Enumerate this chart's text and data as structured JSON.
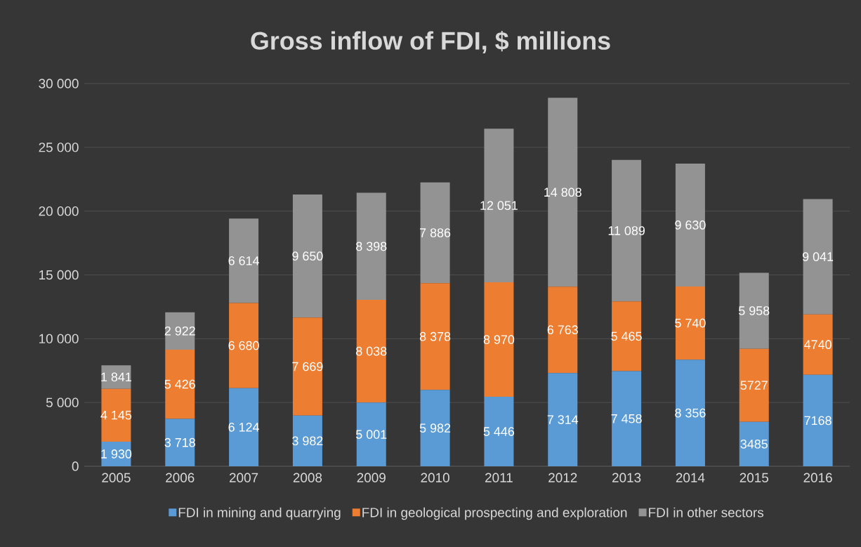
{
  "chart_data": {
    "type": "bar",
    "stacked": true,
    "title": "Gross inflow of FDI, $ millions",
    "categories": [
      "2005",
      "2006",
      "2007",
      "2008",
      "2009",
      "2010",
      "2011",
      "2012",
      "2013",
      "2014",
      "2015",
      "2016"
    ],
    "series": [
      {
        "name": "FDI in mining and quarrying",
        "color": "#5b9bd5",
        "values": [
          1930,
          3718,
          6124,
          3982,
          5001,
          5982,
          5446,
          7314,
          7458,
          8356,
          3485,
          7168
        ],
        "value_labels": [
          "1 930",
          "3 718",
          "6 124",
          "3 982",
          "5 001",
          "5 982",
          "5 446",
          "7 314",
          "7 458",
          "8 356",
          "3485",
          "7168"
        ]
      },
      {
        "name": "FDI in geological prospecting and exploration",
        "color": "#ed7d31",
        "values": [
          4145,
          5426,
          6680,
          7669,
          8038,
          8378,
          8970,
          6763,
          5465,
          5740,
          5727,
          4740
        ],
        "value_labels": [
          "4 145",
          "5 426",
          "6 680",
          "7 669",
          "8 038",
          "8 378",
          "8 970",
          "6 763",
          "5 465",
          "5 740",
          "5727",
          "4740"
        ]
      },
      {
        "name": "FDI in other sectors",
        "color": "#939393",
        "values": [
          1841,
          2922,
          6614,
          9650,
          8398,
          7886,
          12051,
          14808,
          11089,
          9630,
          5958,
          9041
        ],
        "value_labels": [
          "1 841",
          "2 922",
          "6 614",
          "9 650",
          "8 398",
          "7 886",
          "12 051",
          "14 808",
          "11 089",
          "9 630",
          "5 958",
          "9 041"
        ]
      }
    ],
    "ylim": [
      0,
      30000
    ],
    "yticks": [
      0,
      {
        "value": 5000,
        "label": "5 000"
      },
      {
        "value": 10000,
        "label": "10 000"
      },
      {
        "value": 15000,
        "label": "15 000"
      },
      {
        "value": 20000,
        "label": "20 000"
      },
      {
        "value": 25000,
        "label": "25 000"
      },
      {
        "value": 30000,
        "label": "30 000"
      }
    ],
    "grid": "y",
    "legend": "bottom"
  }
}
